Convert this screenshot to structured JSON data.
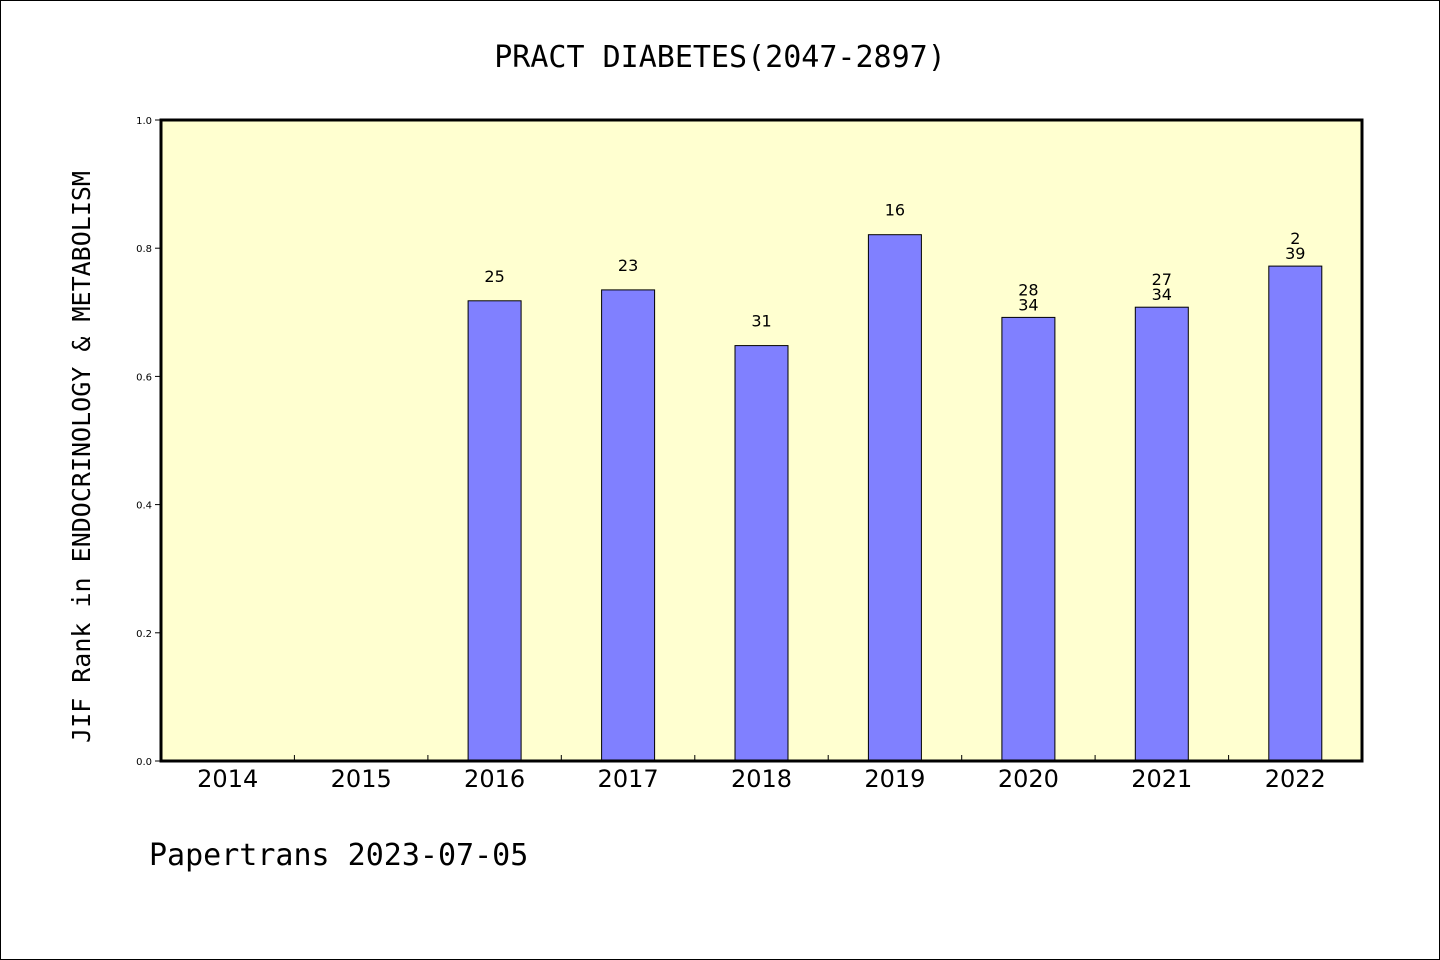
{
  "chart_data": {
    "type": "bar",
    "title": "PRACT DIABETES(2047-2897)",
    "ylabel": "JIF Rank in ENDOCRINOLOGY & METABOLISM",
    "xlabel": "",
    "categories": [
      "2014",
      "2015",
      "2016",
      "2017",
      "2018",
      "2019",
      "2020",
      "2021",
      "2022"
    ],
    "values": [
      null,
      null,
      0.718,
      0.735,
      0.648,
      0.821,
      0.692,
      0.708,
      0.772
    ],
    "bar_labels": [
      [],
      [],
      [
        "25"
      ],
      [
        "23"
      ],
      [
        "31"
      ],
      [
        "16"
      ],
      [
        "28",
        "34"
      ],
      [
        "27",
        "34"
      ],
      [
        "2",
        "39"
      ]
    ],
    "ylim": [
      0,
      1.0
    ],
    "yticks": [
      "0.0",
      "0.2",
      "0.4",
      "0.6",
      "0.8",
      "1.0"
    ],
    "grid": false,
    "colors": {
      "bar_fill": "#8080ff",
      "plot_background": "#ffffd0",
      "axis": "#000000"
    }
  },
  "footer": "Papertrans 2023-07-05"
}
